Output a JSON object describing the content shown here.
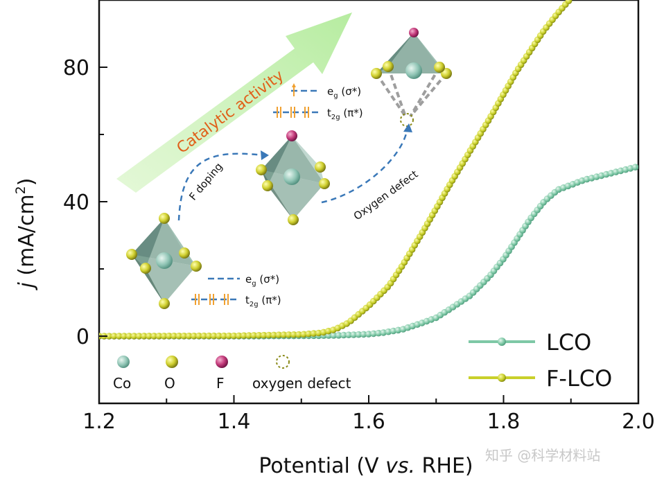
{
  "colors": {
    "lco": "#7ec8a6",
    "flco": "#c9d02a",
    "co_atom": "#8fc4b4",
    "o_atom": "#cfcf2e",
    "f_atom": "#c33a7a",
    "arrow_fill": "#c8f0b0",
    "arrow_text": "#e0601a",
    "dashed": "#3a78b8"
  },
  "chart_data": {
    "type": "line",
    "xlabel_prefix": "Potential (V ",
    "xlabel_italic": "vs.",
    "xlabel_suffix": " RHE)",
    "ylabel_symbol": "j",
    "ylabel_unit": " (mA/cm",
    "ylabel_sup": "2",
    "ylabel_close": ")",
    "xlim": [
      1.2,
      2.0
    ],
    "ylim": [
      -20,
      100
    ],
    "xticks": [
      "1.2",
      "1.4",
      "1.6",
      "1.8",
      "2.0"
    ],
    "yticks": [
      "0",
      "40",
      "80"
    ],
    "legend_position": "bottom-right",
    "series": [
      {
        "name": "LCO",
        "points": [
          [
            1.2,
            0
          ],
          [
            1.4,
            0
          ],
          [
            1.5,
            0.1
          ],
          [
            1.55,
            0.2
          ],
          [
            1.6,
            0.6
          ],
          [
            1.62,
            1.0
          ],
          [
            1.65,
            2.0
          ],
          [
            1.68,
            4.0
          ],
          [
            1.7,
            5.5
          ],
          [
            1.72,
            8.0
          ],
          [
            1.75,
            12.0
          ],
          [
            1.78,
            18.0
          ],
          [
            1.8,
            23.0
          ],
          [
            1.82,
            29.0
          ],
          [
            1.84,
            35.0
          ],
          [
            1.86,
            40.0
          ],
          [
            1.88,
            43.5
          ],
          [
            1.9,
            45.0
          ],
          [
            1.92,
            46.5
          ],
          [
            1.95,
            48.0
          ],
          [
            1.98,
            49.5
          ],
          [
            2.0,
            50.5
          ]
        ]
      },
      {
        "name": "F-LCO",
        "points": [
          [
            1.2,
            0
          ],
          [
            1.4,
            0.1
          ],
          [
            1.5,
            0.5
          ],
          [
            1.53,
            1.0
          ],
          [
            1.55,
            2.0
          ],
          [
            1.57,
            4.0
          ],
          [
            1.6,
            9.0
          ],
          [
            1.63,
            15.0
          ],
          [
            1.65,
            21.0
          ],
          [
            1.68,
            31.0
          ],
          [
            1.7,
            38.0
          ],
          [
            1.72,
            45.0
          ],
          [
            1.75,
            55.0
          ],
          [
            1.78,
            65.0
          ],
          [
            1.8,
            72.0
          ],
          [
            1.82,
            79.0
          ],
          [
            1.84,
            85.0
          ],
          [
            1.86,
            91.0
          ],
          [
            1.88,
            96.0
          ],
          [
            1.9,
            100.5
          ]
        ]
      }
    ]
  },
  "inset": {
    "arrow_text": "Catalytic activity",
    "doping_label": "F doping",
    "defect_label": "Oxygen defect",
    "eg_label": "e",
    "eg_sub": "g",
    "eg_sym": " (σ*)",
    "t2g_label": "t",
    "t2g_sub": "2g",
    "t2g_sym": " (π*)",
    "atom_legend": [
      "Co",
      "O",
      "F",
      "oxygen defect"
    ]
  },
  "watermark": "知乎 @科学材料站"
}
